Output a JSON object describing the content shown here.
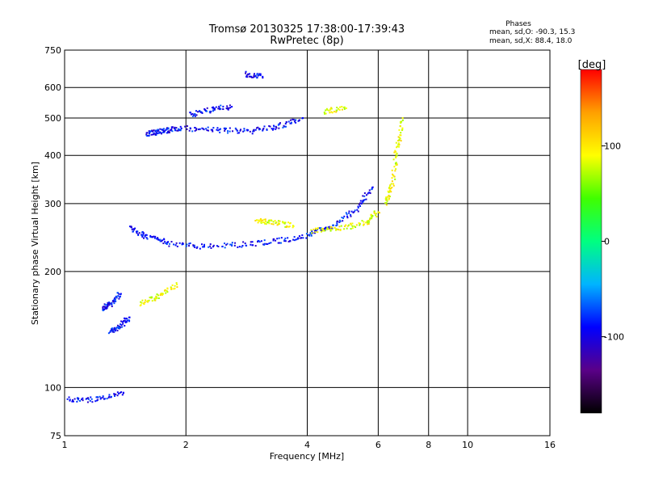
{
  "chart_data": {
    "type": "scatter",
    "title": "Tromsø 20130325 17:38:00-17:39:43",
    "subtitle": "RwPretec (8p)",
    "xlabel": "Frequency [MHz]",
    "ylabel": "Stationary phase Virtual Height [km]",
    "x_scale": "log",
    "y_scale": "log",
    "xlim": [
      1,
      16
    ],
    "ylim": [
      75,
      750
    ],
    "x_ticks": [
      1,
      2,
      4,
      6,
      8,
      10,
      16
    ],
    "y_ticks": [
      75,
      100,
      200,
      300,
      400,
      500,
      600,
      750
    ],
    "grid": true,
    "stats": {
      "heading": "Phases",
      "line1": "mean, sd,O: -90.3, 15.3",
      "line2": "mean, sd,X:  88.4, 18.0"
    },
    "colorbar": {
      "label": "[deg]",
      "range": [
        -180,
        180
      ],
      "ticks": [
        -100,
        0,
        100
      ],
      "colors": [
        "#000000",
        "#5a0088",
        "#0000ff",
        "#00b4ff",
        "#00ff80",
        "#40ff00",
        "#ffff00",
        "#ffa000",
        "#ff0000"
      ]
    },
    "series": [
      {
        "label": "O",
        "phase": -90,
        "segments": [
          {
            "x": [
              1.02,
              1.2,
              1.4
            ],
            "y": [
              93,
              93,
              97
            ]
          },
          {
            "x": [
              1.3,
              1.36,
              1.45
            ],
            "y": [
              140,
              143,
              152
            ]
          },
          {
            "x": [
              1.25,
              1.3,
              1.38
            ],
            "y": [
              160,
              165,
              175
            ]
          },
          {
            "x": [
              1.45,
              1.6,
              1.8
            ],
            "y": [
              260,
              245,
              238
            ]
          },
          {
            "x": [
              1.8,
              2.2,
              2.8,
              3.4,
              4.0,
              4.6,
              5.3,
              5.8
            ],
            "y": [
              236,
              232,
              235,
              240,
              248,
              262,
              290,
              330
            ]
          },
          {
            "x": [
              2.0,
              2.4,
              2.9,
              3.4,
              3.9
            ],
            "y": [
              470,
              465,
              462,
              475,
              500
            ]
          },
          {
            "x": [
              1.6,
              1.7,
              1.8,
              1.95
            ],
            "y": [
              455,
              460,
              465,
              470
            ]
          },
          {
            "x": [
              2.05,
              2.3,
              2.6
            ],
            "y": [
              510,
              525,
              535
            ]
          },
          {
            "x": [
              2.8,
              3.1
            ],
            "y": [
              650,
              640
            ]
          }
        ]
      },
      {
        "label": "X",
        "phase": 88,
        "segments": [
          {
            "x": [
              3.0,
              3.3,
              3.7
            ],
            "y": [
              272,
              268,
              262
            ]
          },
          {
            "x": [
              4.1,
              4.8,
              5.6,
              6.0
            ],
            "y": [
              255,
              258,
              268,
              285
            ]
          },
          {
            "x": [
              6.3,
              6.5,
              6.7,
              6.9
            ],
            "y": [
              300,
              340,
              420,
              500
            ]
          },
          {
            "x": [
              1.55,
              1.7,
              1.9
            ],
            "y": [
              165,
              172,
              185
            ]
          },
          {
            "x": [
              4.4,
              5.0
            ],
            "y": [
              520,
              530
            ]
          }
        ]
      }
    ]
  }
}
